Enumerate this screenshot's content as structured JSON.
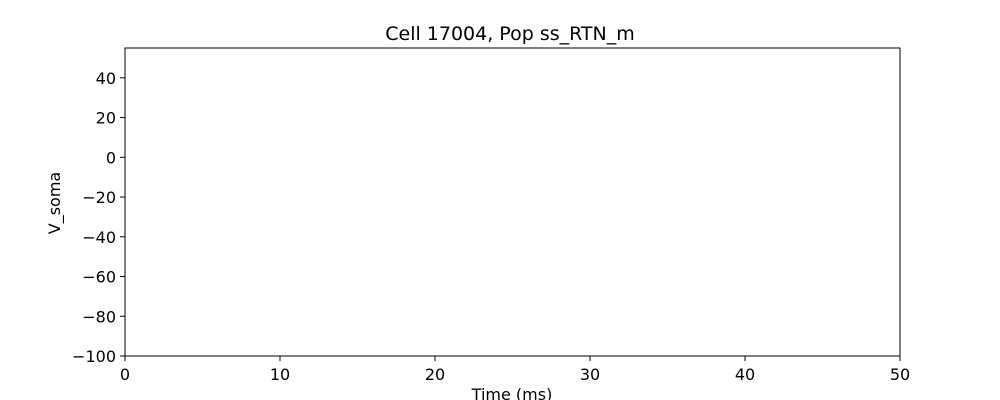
{
  "chart_data": {
    "type": "line",
    "title": "Cell 17004, Pop ss_RTN_m",
    "xlabel": "Time (ms)",
    "ylabel": "V_soma",
    "xlim": [
      0,
      50
    ],
    "ylim": [
      -100,
      55
    ],
    "xticks": [
      0,
      10,
      20,
      30,
      40,
      50
    ],
    "yticks": [
      -100,
      -80,
      -60,
      -40,
      -20,
      0,
      20,
      40
    ],
    "xtick_labels": [
      "0",
      "10",
      "20",
      "30",
      "40",
      "50"
    ],
    "ytick_labels": [
      "−100",
      "−80",
      "−60",
      "−40",
      "−20",
      "0",
      "20",
      "40"
    ],
    "grid": false,
    "series": []
  }
}
